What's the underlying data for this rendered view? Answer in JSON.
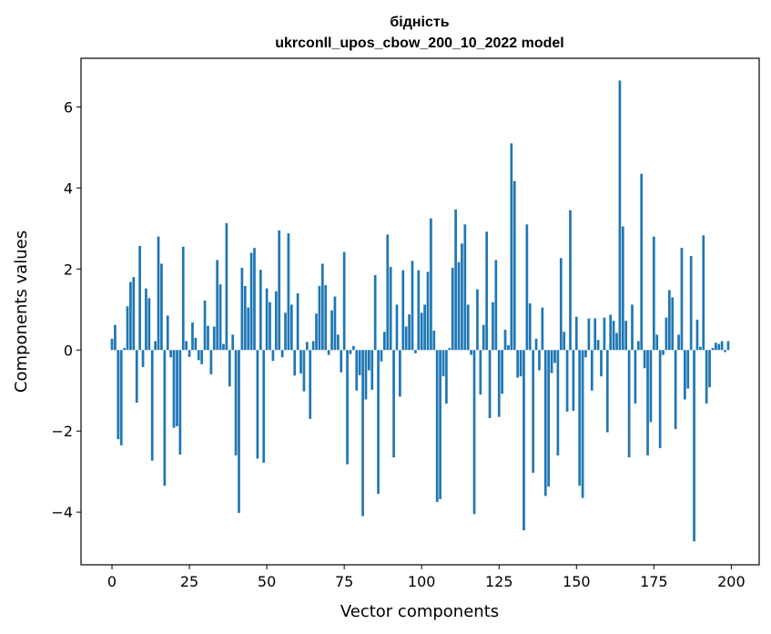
{
  "chart_data": {
    "type": "bar",
    "title": "бідність",
    "subtitle": "ukrconll_upos_cbow_200_10_2022 model",
    "xlabel": "Vector components",
    "ylabel": "Components values",
    "xlim": [
      -10,
      209
    ],
    "ylim": [
      -5.3,
      7.2
    ],
    "xticks": [
      0,
      25,
      50,
      75,
      100,
      125,
      150,
      175,
      200
    ],
    "yticks": [
      -4,
      -2,
      0,
      2,
      4,
      6
    ],
    "ytick_labels": [
      "−4",
      "−2",
      "0",
      "2",
      "4",
      "6"
    ],
    "bar_color": "#1f77b4",
    "grid": false,
    "legend": "none",
    "series": [
      {
        "x_start": 0,
        "values": [
          0.28,
          0.62,
          -2.2,
          -2.35,
          0.05,
          1.08,
          1.68,
          1.8,
          -1.3,
          2.57,
          -0.42,
          1.52,
          1.28,
          -2.73,
          0.22,
          2.8,
          2.13,
          -3.35,
          0.85,
          -0.18,
          -1.92,
          -1.88,
          -2.58,
          2.55,
          0.22,
          -0.17,
          0.68,
          0.3,
          -0.25,
          -0.35,
          1.22,
          0.6,
          -0.6,
          0.58,
          2.22,
          1.62,
          0.15,
          3.13,
          -0.9,
          0.38,
          -2.6,
          -4.02,
          2.03,
          1.58,
          1.05,
          2.4,
          2.52,
          -2.68,
          1.98,
          -2.78,
          1.52,
          1.18,
          -0.27,
          1.45,
          2.95,
          -0.18,
          0.92,
          2.88,
          1.12,
          -0.63,
          1.4,
          -0.58,
          -1.02,
          0.2,
          -1.7,
          0.22,
          0.9,
          1.58,
          2.13,
          1.6,
          -0.12,
          0.98,
          1.32,
          0.38,
          -0.55,
          2.42,
          -2.82,
          -0.1,
          0.1,
          -1.0,
          -0.62,
          -4.1,
          -1.22,
          -0.5,
          -0.98,
          1.85,
          -3.55,
          -0.28,
          0.45,
          2.85,
          2.05,
          -2.65,
          1.12,
          -1.15,
          1.97,
          0.58,
          0.88,
          2.2,
          -0.08,
          1.97,
          0.92,
          1.12,
          1.93,
          3.25,
          0.48,
          -3.75,
          -3.68,
          -0.65,
          -1.32,
          0.05,
          2.03,
          3.47,
          2.17,
          2.63,
          3.1,
          1.12,
          -0.12,
          -4.05,
          1.5,
          -1.1,
          0.62,
          2.92,
          -1.68,
          1.18,
          2.22,
          -1.65,
          -1.08,
          0.5,
          0.12,
          5.1,
          4.17,
          -0.68,
          -0.65,
          -4.45,
          3.1,
          1.15,
          -3.03,
          0.28,
          -0.5,
          1.05,
          -3.6,
          -3.37,
          -0.57,
          -0.32,
          -2.6,
          2.27,
          0.45,
          -1.52,
          3.45,
          -1.5,
          0.82,
          -3.35,
          -3.65,
          -0.18,
          0.78,
          -1.0,
          0.78,
          0.25,
          -0.65,
          0.8,
          -2.03,
          0.87,
          0.72,
          0.42,
          6.65,
          3.05,
          0.72,
          -2.65,
          1.12,
          -1.32,
          0.22,
          4.35,
          -0.45,
          -2.6,
          -1.78,
          2.8,
          0.38,
          -2.42,
          -0.12,
          0.8,
          1.48,
          1.3,
          -1.95,
          0.38,
          2.52,
          -1.22,
          -0.95,
          2.32,
          -4.72,
          0.75,
          0.08,
          2.83,
          -1.32,
          -0.92,
          0.05,
          0.18,
          0.15,
          0.22,
          -0.05,
          0.22
        ]
      }
    ]
  }
}
